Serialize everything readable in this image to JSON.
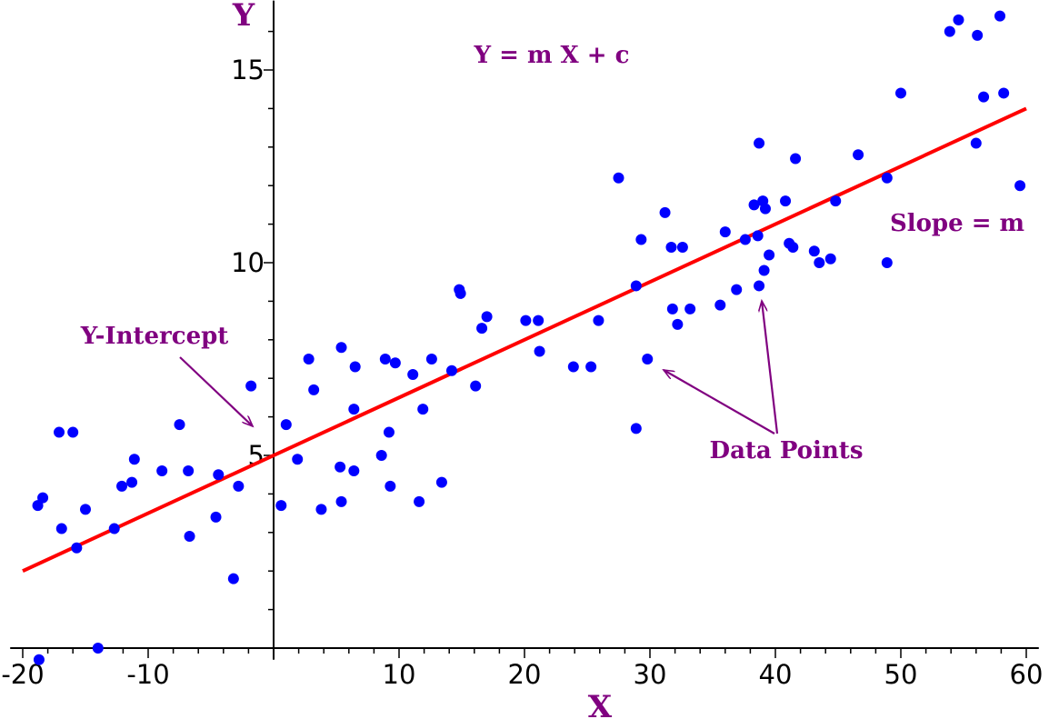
{
  "chart_data": {
    "type": "scatter",
    "title": "",
    "xlabel": "X",
    "ylabel": "Y",
    "xlim": [
      -21,
      61
    ],
    "ylim": [
      -0.3,
      16.8
    ],
    "grid": false,
    "x_ticks": [
      -20,
      -10,
      10,
      20,
      30,
      40,
      50,
      60
    ],
    "x_tick_labels": [
      "-20",
      "-10",
      "10",
      "20",
      "30",
      "40",
      "50",
      "60"
    ],
    "y_ticks": [
      5,
      10,
      15
    ],
    "y_tick_labels": [
      "5",
      "10",
      "15"
    ],
    "equation_label": "Y = m X + c",
    "slope_label": "Slope = m",
    "intercept_label": "Y-Intercept",
    "points_label": "Data Points",
    "fit_line": {
      "slope": 0.15,
      "intercept": 5.0,
      "x_range": [
        -20,
        60
      ]
    },
    "colors": {
      "points": "#0000ff",
      "fit_line": "#ff0000",
      "annotations": "#800080",
      "axes": "#000000"
    },
    "points": [
      [
        -18.7,
        -0.3
      ],
      [
        -14,
        0
      ],
      [
        -18.8,
        3.7
      ],
      [
        -18.4,
        3.9
      ],
      [
        -16.9,
        3.1
      ],
      [
        -17.1,
        5.6
      ],
      [
        -16,
        5.6
      ],
      [
        -15.7,
        2.6
      ],
      [
        -15,
        3.6
      ],
      [
        -12.7,
        3.1
      ],
      [
        -12.1,
        4.2
      ],
      [
        -11.3,
        4.3
      ],
      [
        -11.1,
        4.9
      ],
      [
        -8.9,
        4.6
      ],
      [
        -7.5,
        5.8
      ],
      [
        -6.7,
        2.9
      ],
      [
        -6.8,
        4.6
      ],
      [
        -4.6,
        3.4
      ],
      [
        -4.4,
        4.5
      ],
      [
        -3.2,
        1.8
      ],
      [
        -2.8,
        4.2
      ],
      [
        -1.8,
        6.8
      ],
      [
        0.6,
        3.7
      ],
      [
        1,
        5.8
      ],
      [
        1.9,
        4.9
      ],
      [
        2.8,
        7.5
      ],
      [
        3.2,
        6.7
      ],
      [
        3.8,
        3.6
      ],
      [
        5.4,
        7.8
      ],
      [
        5.3,
        4.7
      ],
      [
        5.4,
        3.8
      ],
      [
        6.4,
        4.6
      ],
      [
        6.4,
        6.2
      ],
      [
        6.5,
        7.3
      ],
      [
        8.6,
        5
      ],
      [
        8.9,
        7.5
      ],
      [
        9.2,
        5.6
      ],
      [
        9.3,
        4.2
      ],
      [
        9.7,
        7.4
      ],
      [
        11.1,
        7.1
      ],
      [
        11.6,
        3.8
      ],
      [
        11.9,
        6.2
      ],
      [
        12.6,
        7.5
      ],
      [
        13.4,
        4.3
      ],
      [
        14.2,
        7.2
      ],
      [
        14.8,
        9.3
      ],
      [
        14.9,
        9.2
      ],
      [
        16.1,
        6.8
      ],
      [
        16.6,
        8.3
      ],
      [
        17,
        8.6
      ],
      [
        20.1,
        8.5
      ],
      [
        21.1,
        8.5
      ],
      [
        21.2,
        7.7
      ],
      [
        23.9,
        7.3
      ],
      [
        25.3,
        7.3
      ],
      [
        25.9,
        8.5
      ],
      [
        27.5,
        12.2
      ],
      [
        28.9,
        9.4
      ],
      [
        28.9,
        5.7
      ],
      [
        29.3,
        10.6
      ],
      [
        29.8,
        7.5
      ],
      [
        31.2,
        11.3
      ],
      [
        31.7,
        10.4
      ],
      [
        31.8,
        8.8
      ],
      [
        32.2,
        8.4
      ],
      [
        32.6,
        10.4
      ],
      [
        33.2,
        8.8
      ],
      [
        35.6,
        8.9
      ],
      [
        36,
        10.8
      ],
      [
        36.9,
        9.3
      ],
      [
        37.6,
        10.6
      ],
      [
        38.3,
        11.5
      ],
      [
        38.6,
        10.7
      ],
      [
        38.7,
        13.1
      ],
      [
        38.7,
        9.4
      ],
      [
        39,
        11.6
      ],
      [
        39.1,
        9.8
      ],
      [
        39.2,
        11.4
      ],
      [
        39.5,
        10.2
      ],
      [
        40.8,
        11.6
      ],
      [
        41.1,
        10.5
      ],
      [
        41.4,
        10.4
      ],
      [
        41.6,
        12.7
      ],
      [
        43.1,
        10.3
      ],
      [
        43.5,
        10
      ],
      [
        44.4,
        10.1
      ],
      [
        44.8,
        11.6
      ],
      [
        46.6,
        12.8
      ],
      [
        48.9,
        12.2
      ],
      [
        48.9,
        10
      ],
      [
        50,
        14.4
      ],
      [
        53.9,
        16
      ],
      [
        54.6,
        16.3
      ],
      [
        56,
        13.1
      ],
      [
        56.1,
        15.9
      ],
      [
        56.6,
        14.3
      ],
      [
        57.9,
        16.4
      ],
      [
        58.2,
        14.4
      ],
      [
        59.5,
        12
      ]
    ]
  }
}
